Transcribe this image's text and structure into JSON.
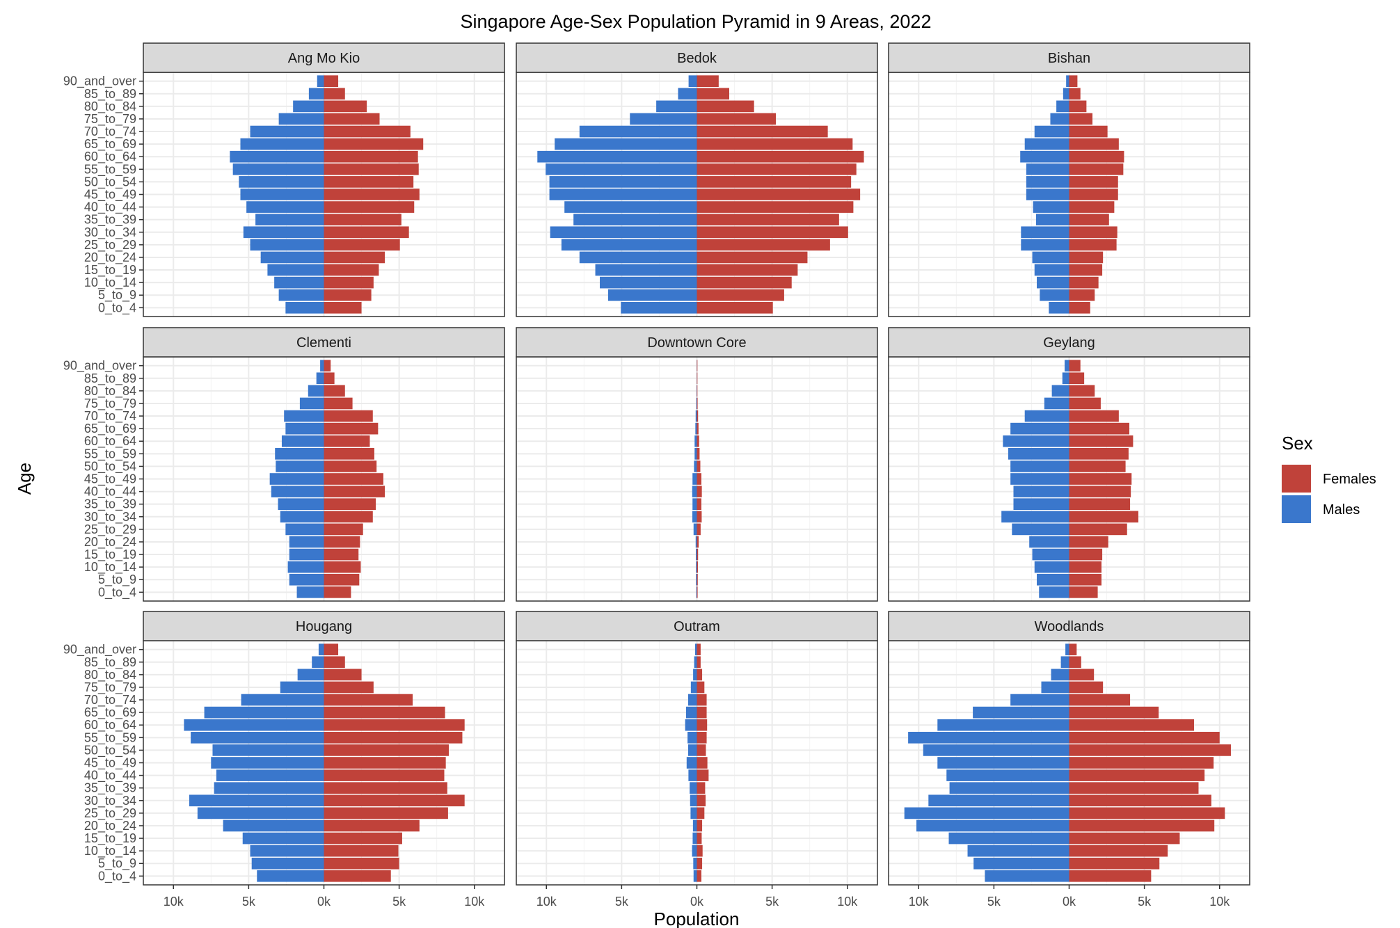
{
  "chart_data": {
    "type": "bar",
    "title": "Singapore Age-Sex Population Pyramid in 9 Areas, 2022",
    "xlabel": "Population",
    "ylabel": "Age",
    "xlim": [
      -12000,
      12000
    ],
    "x_ticks": [
      -10000,
      -5000,
      0,
      5000,
      10000
    ],
    "x_tick_labels": [
      "10k",
      "5k",
      "0k",
      "5k",
      "10k"
    ],
    "grid": true,
    "legend": {
      "title": "Sex",
      "placement": "right",
      "entries": [
        {
          "name": "Females",
          "color": "#c0423a"
        },
        {
          "name": "Males",
          "color": "#3a77cc"
        }
      ]
    },
    "age_groups": [
      "0_to_4",
      "5_to_9",
      "10_to_14",
      "15_to_19",
      "20_to_24",
      "25_to_29",
      "30_to_34",
      "35_to_39",
      "40_to_44",
      "45_to_49",
      "50_to_54",
      "55_to_59",
      "60_to_64",
      "65_to_69",
      "70_to_74",
      "75_to_79",
      "80_to_84",
      "85_to_89",
      "90_and_over"
    ],
    "panels": [
      {
        "name": "Ang Mo Kio",
        "males": [
          2550,
          3000,
          3300,
          3750,
          4200,
          4900,
          5350,
          4550,
          5150,
          5550,
          5650,
          6050,
          6250,
          5550,
          4900,
          3000,
          2050,
          1000,
          450
        ],
        "females": [
          2500,
          3150,
          3300,
          3650,
          4050,
          5050,
          5650,
          5150,
          6000,
          6350,
          5950,
          6300,
          6250,
          6600,
          5750,
          3700,
          2850,
          1400,
          950
        ]
      },
      {
        "name": "Bedok",
        "males": [
          5050,
          5900,
          6450,
          6750,
          7800,
          9000,
          9750,
          8200,
          8800,
          9800,
          9800,
          10050,
          10600,
          9450,
          7800,
          4450,
          2700,
          1250,
          550
        ],
        "females": [
          5050,
          5800,
          6300,
          6700,
          7350,
          8850,
          10050,
          9450,
          10400,
          10850,
          10250,
          10600,
          11100,
          10350,
          8700,
          5250,
          3800,
          2150,
          1450
        ]
      },
      {
        "name": "Bishan",
        "males": [
          1350,
          1950,
          2150,
          2300,
          2450,
          3200,
          3200,
          2200,
          2400,
          2850,
          2850,
          2850,
          3250,
          2950,
          2300,
          1250,
          850,
          400,
          200
        ],
        "females": [
          1400,
          1700,
          1950,
          2200,
          2250,
          3150,
          3200,
          2650,
          3000,
          3250,
          3250,
          3600,
          3650,
          3300,
          2550,
          1550,
          1150,
          750,
          550
        ]
      },
      {
        "name": "Clementi",
        "males": [
          1800,
          2300,
          2400,
          2300,
          2300,
          2550,
          2900,
          3050,
          3500,
          3600,
          3200,
          3250,
          2800,
          2550,
          2650,
          1600,
          1050,
          500,
          250
        ],
        "females": [
          1800,
          2350,
          2450,
          2300,
          2400,
          2600,
          3250,
          3450,
          4050,
          3950,
          3500,
          3350,
          3050,
          3600,
          3250,
          1900,
          1400,
          700,
          450
        ]
      },
      {
        "name": "Downtown Core",
        "males": [
          40,
          60,
          60,
          70,
          80,
          220,
          300,
          290,
          310,
          290,
          190,
          150,
          150,
          100,
          80,
          40,
          20,
          10,
          10
        ],
        "females": [
          50,
          60,
          70,
          80,
          120,
          250,
          320,
          300,
          330,
          300,
          230,
          180,
          150,
          110,
          80,
          50,
          30,
          15,
          10
        ]
      },
      {
        "name": "Geylang",
        "males": [
          2000,
          2150,
          2300,
          2450,
          2650,
          3800,
          4500,
          3700,
          3700,
          3900,
          3900,
          4050,
          4400,
          3900,
          2950,
          1650,
          1150,
          450,
          300
        ],
        "females": [
          1900,
          2150,
          2150,
          2200,
          2600,
          3850,
          4600,
          4050,
          4100,
          4150,
          3750,
          3950,
          4250,
          4000,
          3300,
          2100,
          1700,
          1000,
          750
        ]
      },
      {
        "name": "Hougang",
        "males": [
          4450,
          4800,
          4900,
          5400,
          6700,
          8400,
          8950,
          7300,
          7150,
          7500,
          7400,
          8850,
          9300,
          7950,
          5500,
          2900,
          1750,
          800,
          350
        ],
        "females": [
          4450,
          5000,
          4950,
          5200,
          6350,
          8250,
          9350,
          8200,
          8000,
          8100,
          8300,
          9200,
          9350,
          8050,
          5900,
          3300,
          2500,
          1400,
          950
        ]
      },
      {
        "name": "Outram",
        "males": [
          220,
          240,
          320,
          280,
          260,
          420,
          450,
          480,
          560,
          680,
          580,
          620,
          780,
          720,
          580,
          400,
          250,
          180,
          120
        ],
        "females": [
          300,
          350,
          380,
          320,
          350,
          500,
          580,
          550,
          780,
          700,
          600,
          650,
          680,
          650,
          650,
          500,
          350,
          250,
          250
        ]
      },
      {
        "name": "Woodlands",
        "males": [
          5600,
          6350,
          6750,
          8000,
          10150,
          10950,
          9350,
          7950,
          8150,
          8750,
          9700,
          10700,
          8750,
          6400,
          3900,
          1850,
          1200,
          550,
          250
        ],
        "females": [
          5450,
          6000,
          6550,
          7350,
          9650,
          10350,
          9450,
          8600,
          9000,
          9600,
          10750,
          10000,
          8300,
          5950,
          4050,
          2250,
          1650,
          800,
          500
        ]
      }
    ]
  }
}
